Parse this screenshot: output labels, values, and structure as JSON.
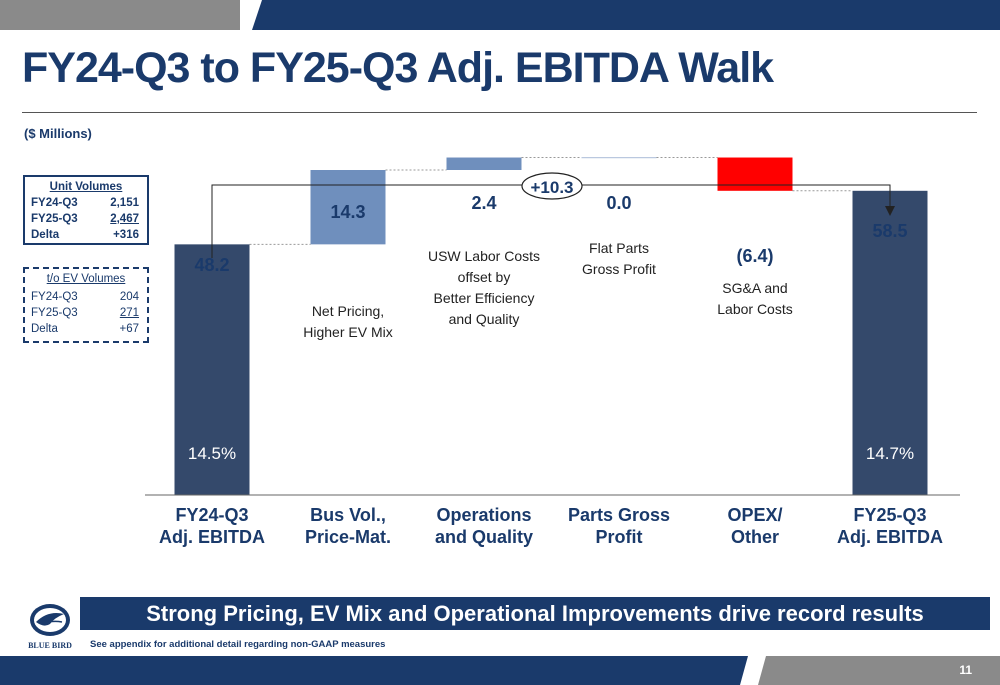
{
  "slide": {
    "title": "FY24-Q3 to FY25-Q3 Adj. EBITDA Walk",
    "units": "($ Millions)",
    "banner": "Strong Pricing, EV Mix and Operational Improvements drive record results",
    "footnote": "See appendix for additional detail regarding non-GAAP measures",
    "page_number": "11",
    "logo_text": "BLUE BIRD"
  },
  "unit_volumes": {
    "title": "Unit Volumes",
    "rows": [
      {
        "label": "FY24-Q3",
        "value": "2,151"
      },
      {
        "label": "FY25-Q3",
        "value": "2,467"
      },
      {
        "label": "Delta",
        "value": "+316"
      }
    ]
  },
  "ev_volumes": {
    "title": "t/o EV Volumes",
    "rows": [
      {
        "label": "FY24-Q3",
        "value": "204"
      },
      {
        "label": "FY25-Q3",
        "value": "271"
      },
      {
        "label": "Delta",
        "value": "+67"
      }
    ]
  },
  "chart_data": {
    "type": "bar",
    "subtype": "waterfall",
    "ylim": [
      0,
      60
    ],
    "categories": [
      "FY24-Q3 Adj. EBITDA",
      "Bus Vol., Price-Mat.",
      "Operations and Quality",
      "Parts Gross Profit",
      "OPEX/ Other",
      "FY25-Q3 Adj. EBITDA"
    ],
    "category_lines": [
      [
        "FY24-Q3",
        "Adj. EBITDA"
      ],
      [
        "Bus Vol.,",
        "Price-Mat."
      ],
      [
        "Operations",
        "and Quality"
      ],
      [
        "Parts Gross",
        "Profit"
      ],
      [
        "OPEX/",
        "Other"
      ],
      [
        "FY25-Q3",
        "Adj. EBITDA"
      ]
    ],
    "values": [
      48.2,
      14.3,
      2.4,
      0.0,
      -6.4,
      58.5
    ],
    "kinds": [
      "total",
      "delta",
      "delta",
      "delta",
      "delta",
      "total"
    ],
    "value_labels": [
      "48.2",
      "14.3",
      "2.4",
      "0.0",
      "(6.4)",
      "58.5"
    ],
    "margin_labels": [
      "14.5%",
      "",
      "",
      "",
      "",
      "14.7%"
    ],
    "annotations": [
      [],
      [
        "Net Pricing,",
        "Higher EV Mix"
      ],
      [
        "USW Labor Costs",
        "offset by",
        "Better Efficiency",
        "and Quality"
      ],
      [
        "Flat Parts",
        "Gross Profit"
      ],
      [
        "SG&A and",
        "Labor Costs"
      ],
      []
    ],
    "total_change_label": "+10.3",
    "colors": {
      "total": "#34496b",
      "increase": "#6f8fbd",
      "decrease": "#ff0000",
      "axis_text": "#1a3a6b",
      "value_text": "#1a3a6b",
      "annotation_text": "#222222"
    }
  }
}
